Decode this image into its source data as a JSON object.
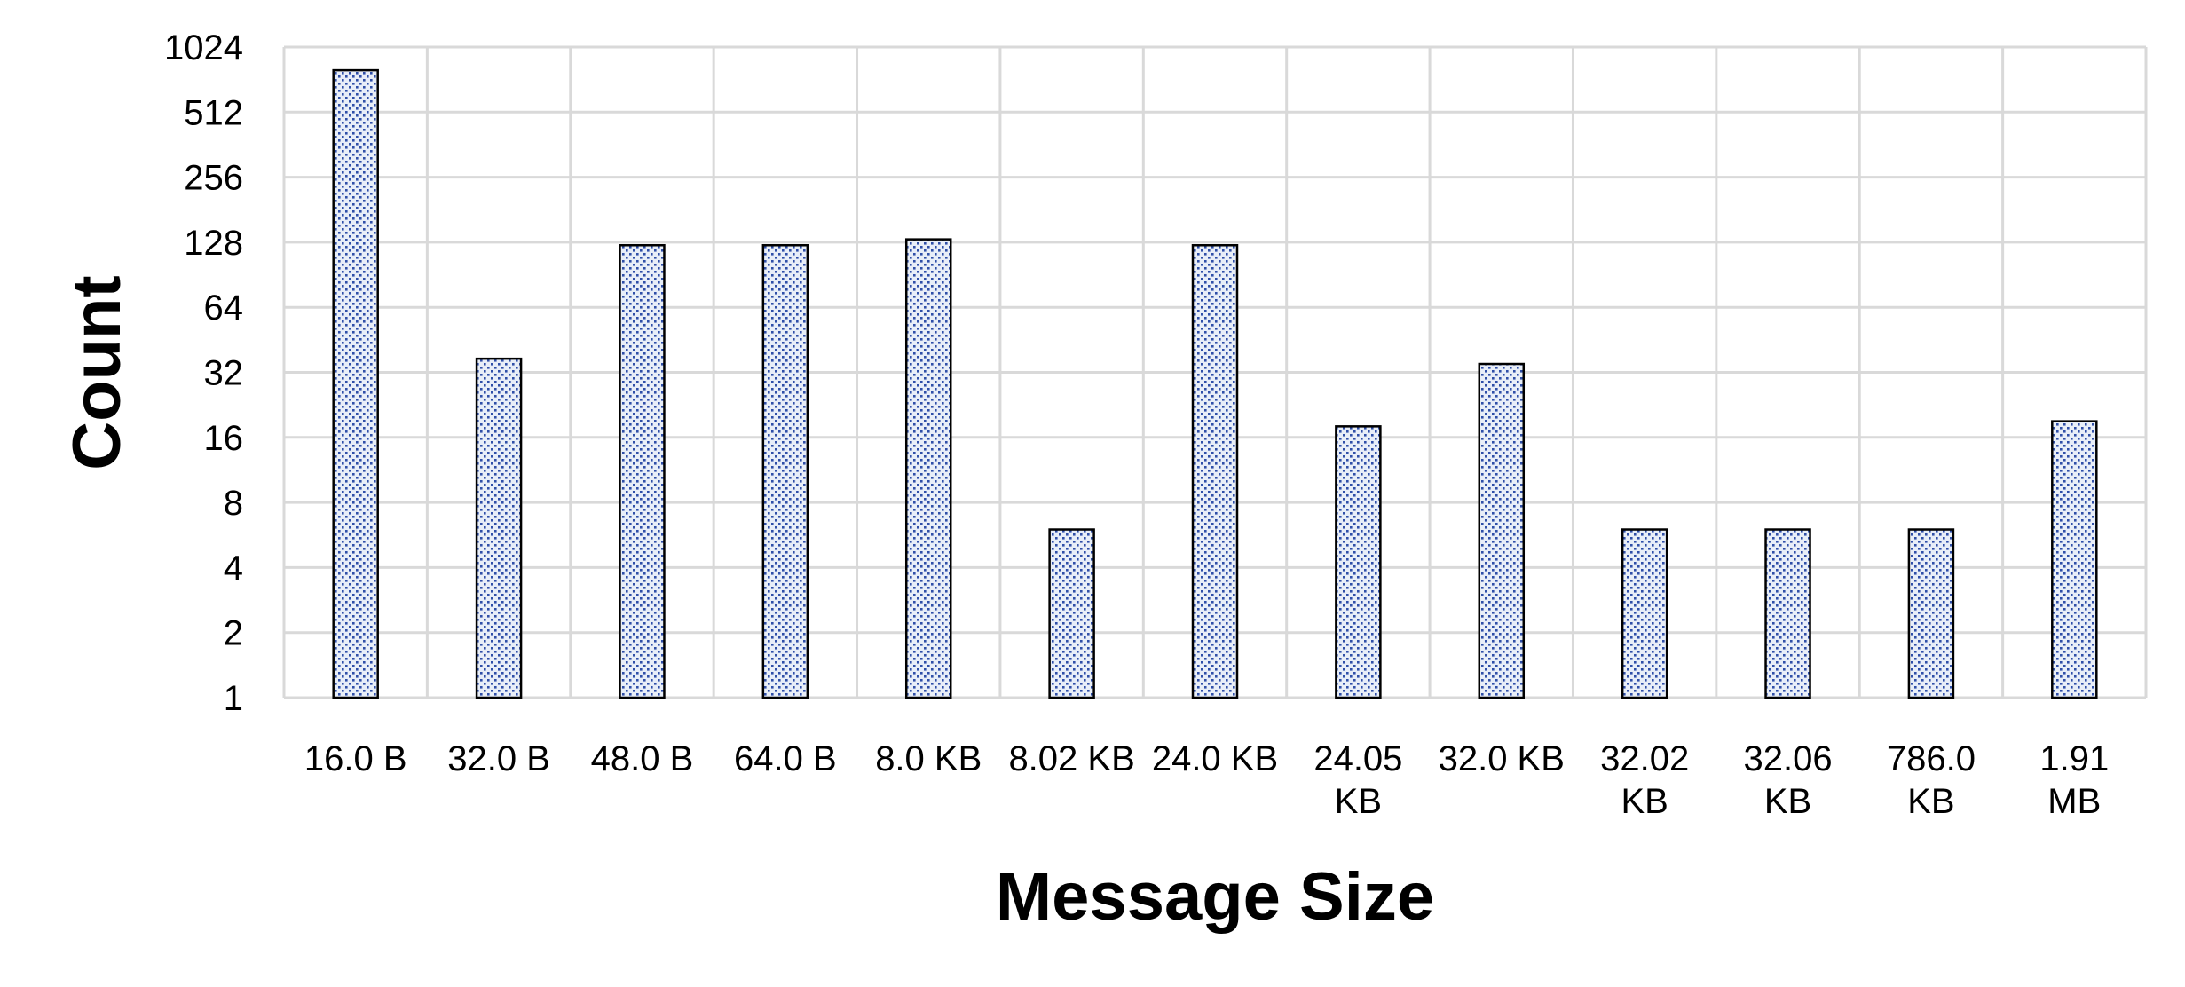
{
  "chart_data": {
    "type": "bar",
    "title": "",
    "xlabel": "Message Size",
    "ylabel": "Count",
    "y_scale": "log2",
    "ylim": [
      1,
      1024
    ],
    "y_ticks": [
      "1",
      "2",
      "4",
      "8",
      "16",
      "32",
      "64",
      "128",
      "256",
      "512",
      "1024"
    ],
    "grid": true,
    "legend": "none",
    "bar_color": "#2f4fa8",
    "bar_fill": "#e8eef8",
    "bar_outline": "#000000",
    "grid_color": "#d9d9d9",
    "categories": [
      [
        "16.0 B"
      ],
      [
        "32.0 B"
      ],
      [
        "48.0 B"
      ],
      [
        "64.0 B"
      ],
      [
        "8.0 KB"
      ],
      [
        "8.02 KB"
      ],
      [
        "24.0 KB"
      ],
      [
        "24.05",
        "KB"
      ],
      [
        "32.0 KB"
      ],
      [
        "32.02",
        "KB"
      ],
      [
        "32.06",
        "KB"
      ],
      [
        "786.0",
        "KB"
      ],
      [
        "1.91",
        "MB"
      ]
    ],
    "values": [
      800,
      37,
      124,
      124,
      132,
      6,
      124,
      18,
      35,
      6,
      6,
      6,
      19
    ]
  }
}
